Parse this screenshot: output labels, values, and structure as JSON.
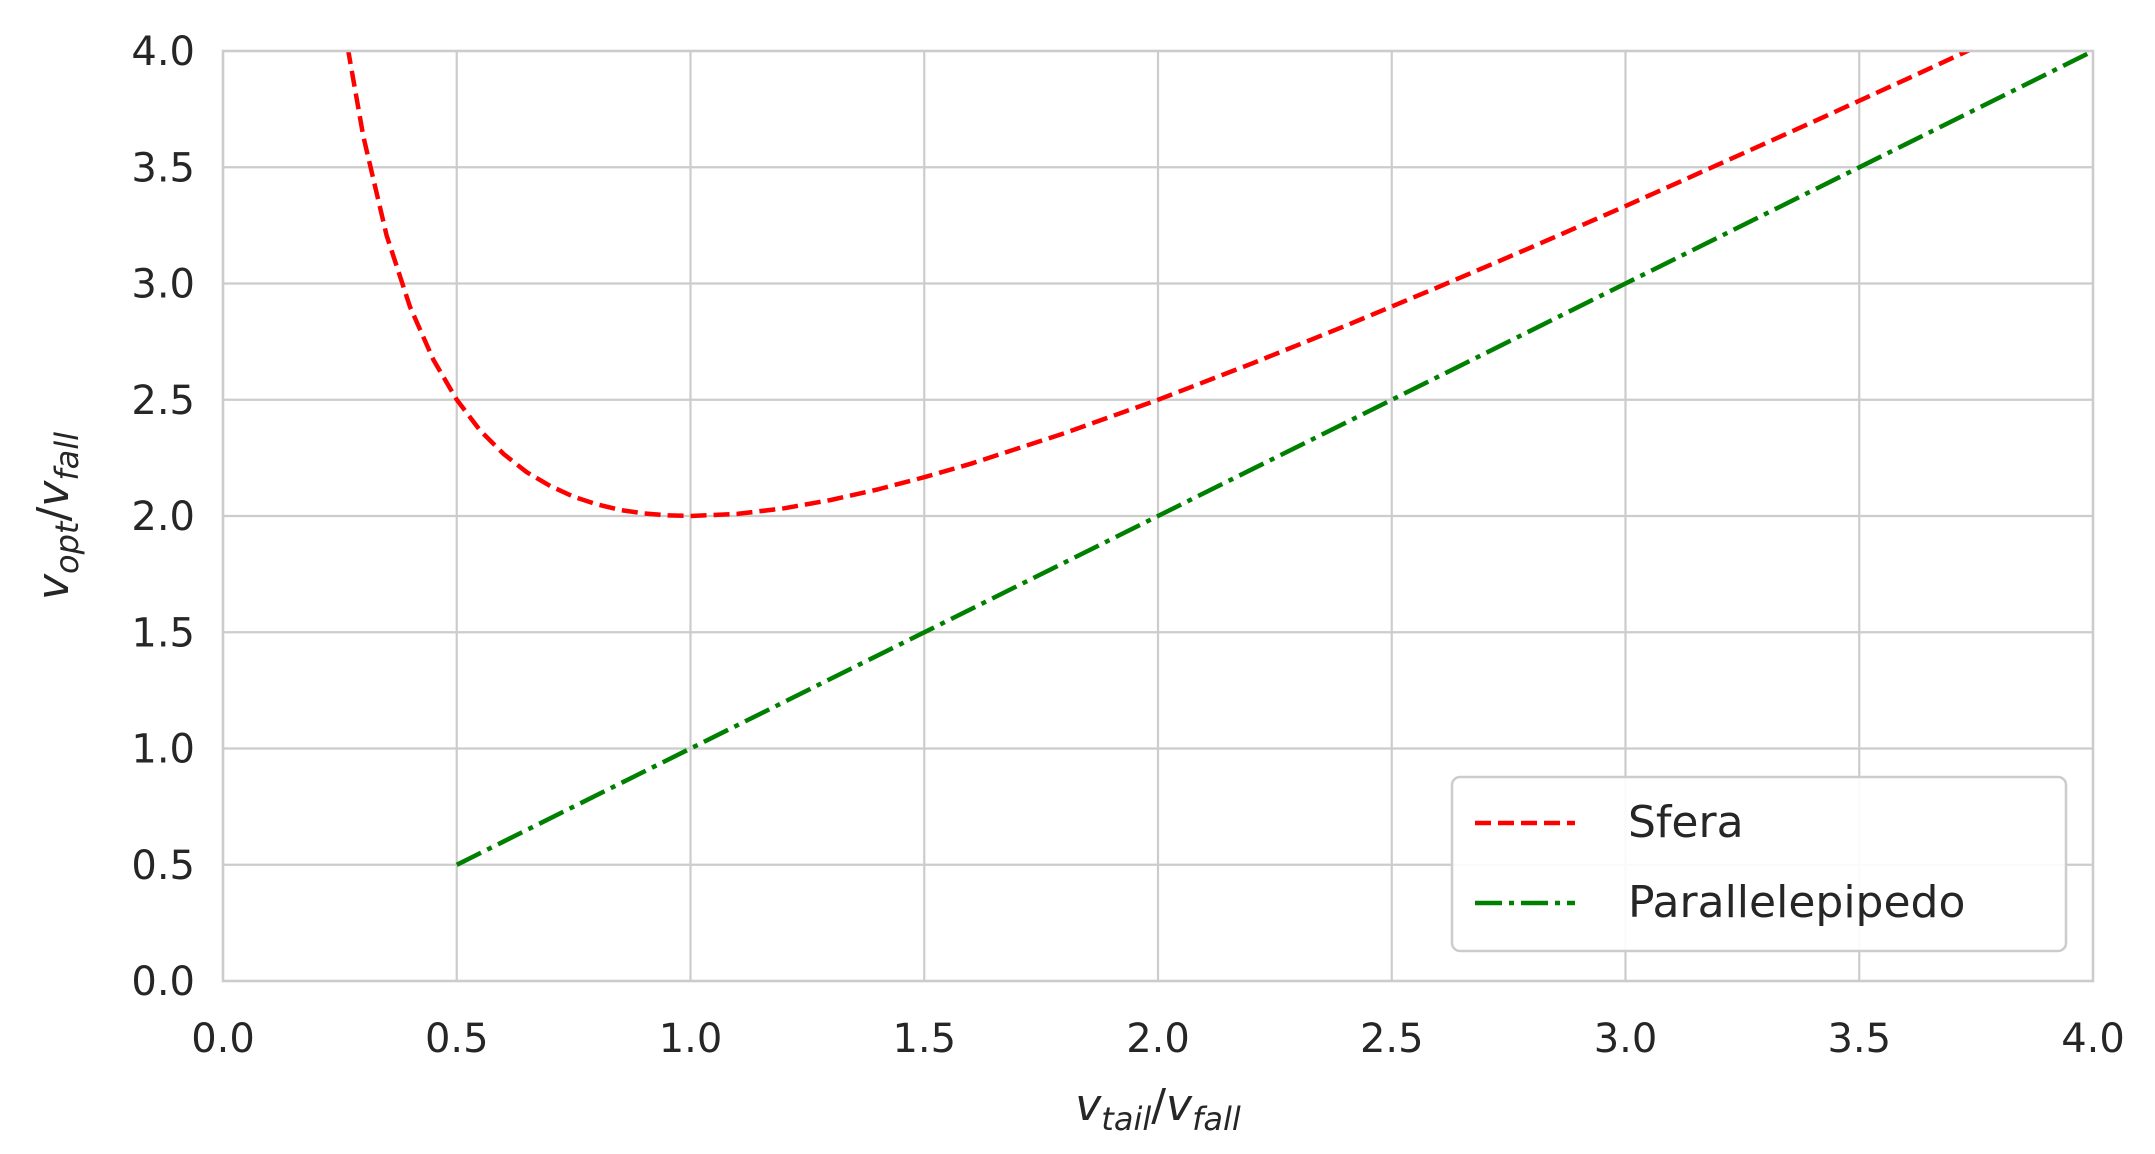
{
  "chart_data": {
    "type": "line",
    "title": "",
    "xlabel": {
      "base1": "v",
      "sub1": "tail",
      "sep": "/",
      "base2": "v",
      "sub2": "fall"
    },
    "ylabel": {
      "base1": "v",
      "sub1": "opt",
      "sep": "/",
      "base2": "v",
      "sub2": "fall"
    },
    "xlim": [
      0.0,
      4.0
    ],
    "ylim": [
      0.0,
      4.0
    ],
    "xticks": [
      "0.0",
      "0.5",
      "1.0",
      "1.5",
      "2.0",
      "2.5",
      "3.0",
      "3.5",
      "4.0"
    ],
    "yticks": [
      "0.0",
      "0.5",
      "1.0",
      "1.5",
      "2.0",
      "2.5",
      "3.0",
      "3.5",
      "4.0"
    ],
    "grid": true,
    "legend_position": "lower-right",
    "series": [
      {
        "name": "Sfera",
        "color": "#ff0000",
        "style": "dashed",
        "x": [
          0.267,
          0.3,
          0.35,
          0.4,
          0.45,
          0.5,
          0.55,
          0.6,
          0.65,
          0.7,
          0.75,
          0.8,
          0.85,
          0.9,
          0.95,
          1.0,
          1.1,
          1.2,
          1.3,
          1.4,
          1.5,
          1.6,
          1.8,
          2.0,
          2.2,
          2.4,
          2.6,
          2.8,
          3.0,
          3.2,
          3.4,
          3.6,
          3.75
        ],
        "y": [
          4.012,
          3.633,
          3.207,
          2.9,
          2.672,
          2.5,
          2.368,
          2.267,
          2.188,
          2.129,
          2.083,
          2.05,
          2.026,
          2.011,
          2.003,
          2.0,
          2.009,
          2.033,
          2.069,
          2.114,
          2.167,
          2.225,
          2.356,
          2.5,
          2.655,
          2.817,
          2.985,
          3.157,
          3.333,
          3.513,
          3.694,
          3.878,
          4.017
        ]
      },
      {
        "name": "Parallelepipedo",
        "color": "#008000",
        "style": "dashdot",
        "x": [
          0.5,
          1.0,
          1.5,
          2.0,
          2.5,
          3.0,
          3.5,
          4.0
        ],
        "y": [
          0.5,
          1.0,
          1.5,
          2.0,
          2.5,
          3.0,
          3.5,
          4.0
        ]
      }
    ]
  }
}
